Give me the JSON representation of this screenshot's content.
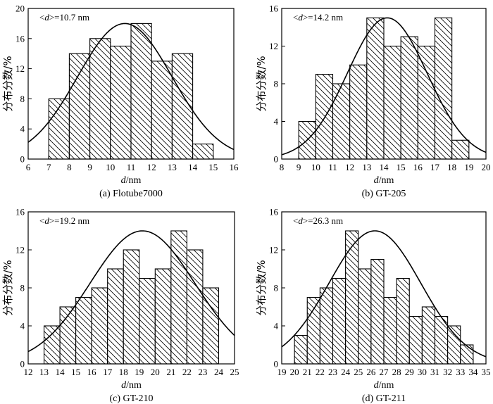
{
  "chart_data": [
    {
      "type": "bar",
      "panel_label": "(a) Flotube7000",
      "annotation_prefix": "<",
      "annotation_var": "d",
      "annotation_suffix": ">=10.7 nm",
      "xlabel_var": "d",
      "xlabel_unit": "/nm",
      "ylabel": "分布分数/%",
      "xlim": [
        6,
        16
      ],
      "ylim": [
        0,
        20
      ],
      "xticks": [
        6,
        7,
        8,
        9,
        10,
        11,
        12,
        13,
        14,
        15,
        16
      ],
      "yticks": [
        0,
        4,
        8,
        12,
        16,
        20
      ],
      "bins": [
        {
          "start": 7,
          "end": 8,
          "value": 8
        },
        {
          "start": 8,
          "end": 9,
          "value": 14
        },
        {
          "start": 9,
          "end": 10,
          "value": 16
        },
        {
          "start": 10,
          "end": 11,
          "value": 15
        },
        {
          "start": 11,
          "end": 12,
          "value": 18
        },
        {
          "start": 12,
          "end": 13,
          "value": 13
        },
        {
          "start": 13,
          "end": 14,
          "value": 14
        },
        {
          "start": 14,
          "end": 15,
          "value": 2
        }
      ],
      "fit": {
        "type": "gaussian",
        "mean": 10.7,
        "sigma": 2.3,
        "peak": 18
      }
    },
    {
      "type": "bar",
      "panel_label": "(b) GT-205",
      "annotation_prefix": "<",
      "annotation_var": "d",
      "annotation_suffix": ">=14.2 nm",
      "xlabel_var": "d",
      "xlabel_unit": "/nm",
      "ylabel": "分布分数/%",
      "xlim": [
        8,
        20
      ],
      "ylim": [
        0,
        16
      ],
      "xticks": [
        8,
        9,
        10,
        11,
        12,
        13,
        14,
        15,
        16,
        17,
        18,
        19,
        20
      ],
      "yticks": [
        0,
        4,
        8,
        12,
        16
      ],
      "bins": [
        {
          "start": 9,
          "end": 10,
          "value": 4
        },
        {
          "start": 10,
          "end": 11,
          "value": 9
        },
        {
          "start": 11,
          "end": 12,
          "value": 8
        },
        {
          "start": 12,
          "end": 13,
          "value": 10
        },
        {
          "start": 13,
          "end": 14,
          "value": 15
        },
        {
          "start": 14,
          "end": 15,
          "value": 12
        },
        {
          "start": 15,
          "end": 16,
          "value": 13
        },
        {
          "start": 16,
          "end": 17,
          "value": 12
        },
        {
          "start": 17,
          "end": 18,
          "value": 15
        },
        {
          "start": 18,
          "end": 19,
          "value": 2
        }
      ],
      "fit": {
        "type": "gaussian",
        "mean": 14.2,
        "sigma": 2.35,
        "peak": 15
      }
    },
    {
      "type": "bar",
      "panel_label": "(c) GT-210",
      "annotation_prefix": "<",
      "annotation_var": "d",
      "annotation_suffix": ">=19.2 nm",
      "xlabel_var": "d",
      "xlabel_unit": "/nm",
      "ylabel": "分布分数/%",
      "xlim": [
        12,
        25
      ],
      "ylim": [
        0,
        16
      ],
      "xticks": [
        12,
        13,
        14,
        15,
        16,
        17,
        18,
        19,
        20,
        21,
        22,
        23,
        24,
        25
      ],
      "yticks": [
        0,
        4,
        8,
        12,
        16
      ],
      "bins": [
        {
          "start": 13,
          "end": 14,
          "value": 4
        },
        {
          "start": 14,
          "end": 15,
          "value": 6
        },
        {
          "start": 15,
          "end": 16,
          "value": 7
        },
        {
          "start": 16,
          "end": 17,
          "value": 8
        },
        {
          "start": 17,
          "end": 18,
          "value": 10
        },
        {
          "start": 18,
          "end": 19,
          "value": 12
        },
        {
          "start": 19,
          "end": 20,
          "value": 9
        },
        {
          "start": 20,
          "end": 21,
          "value": 10
        },
        {
          "start": 21,
          "end": 22,
          "value": 14
        },
        {
          "start": 22,
          "end": 23,
          "value": 12
        },
        {
          "start": 23,
          "end": 24,
          "value": 8
        }
      ],
      "fit": {
        "type": "gaussian",
        "mean": 19.2,
        "sigma": 3.3,
        "peak": 14
      }
    },
    {
      "type": "bar",
      "panel_label": "(d) GT-211",
      "annotation_prefix": "<",
      "annotation_var": "d",
      "annotation_suffix": ">=26.3 nm",
      "xlabel_var": "d",
      "xlabel_unit": "/nm",
      "ylabel": "分布分数/%",
      "xlim": [
        19,
        35
      ],
      "ylim": [
        0,
        16
      ],
      "xticks": [
        19,
        20,
        21,
        22,
        23,
        24,
        25,
        26,
        27,
        28,
        29,
        30,
        31,
        32,
        33,
        34,
        35
      ],
      "yticks": [
        0,
        4,
        8,
        12,
        16
      ],
      "bins": [
        {
          "start": 20,
          "end": 21,
          "value": 3
        },
        {
          "start": 21,
          "end": 22,
          "value": 7
        },
        {
          "start": 22,
          "end": 23,
          "value": 8
        },
        {
          "start": 23,
          "end": 24,
          "value": 9
        },
        {
          "start": 24,
          "end": 25,
          "value": 14
        },
        {
          "start": 25,
          "end": 26,
          "value": 10
        },
        {
          "start": 26,
          "end": 27,
          "value": 11
        },
        {
          "start": 27,
          "end": 28,
          "value": 7
        },
        {
          "start": 28,
          "end": 29,
          "value": 9
        },
        {
          "start": 29,
          "end": 30,
          "value": 5
        },
        {
          "start": 30,
          "end": 31,
          "value": 6
        },
        {
          "start": 31,
          "end": 32,
          "value": 5
        },
        {
          "start": 32,
          "end": 33,
          "value": 4
        },
        {
          "start": 33,
          "end": 34,
          "value": 2
        }
      ],
      "fit": {
        "type": "gaussian",
        "mean": 26.3,
        "sigma": 3.6,
        "peak": 14
      }
    }
  ]
}
